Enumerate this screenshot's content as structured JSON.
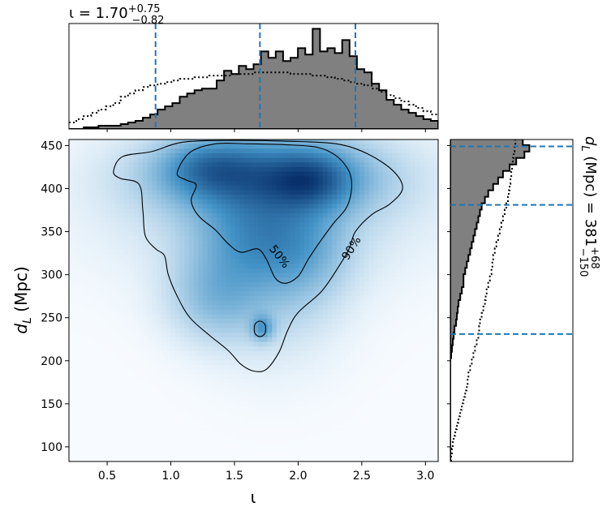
{
  "chart_data": {
    "type": "heatmap",
    "colors": {
      "density": "#08519c",
      "density_low": "#f7fbff",
      "histogram_fill": "#808080",
      "median_line": "#1f77b4",
      "outline": "#000000"
    },
    "joint": {
      "x_ticks": [
        0.5,
        1.0,
        1.5,
        2.0,
        2.5,
        3.0
      ],
      "x_tick_labels": [
        "0.5",
        "1.0",
        "1.5",
        "2.0",
        "2.5",
        "3.0"
      ],
      "y_ticks": [
        100,
        150,
        200,
        250,
        300,
        350,
        400,
        450
      ],
      "y_tick_labels": [
        "100",
        "150",
        "200",
        "250",
        "300",
        "350",
        "400",
        "450"
      ],
      "xlim": [
        0.2,
        3.1
      ],
      "ylim": [
        83,
        457
      ],
      "xlabel": "ι",
      "ylabel": "d",
      "ylabel_sub": "L",
      "ylabel_unit": " (Mpc)",
      "contour_labels": [
        "50%",
        "90%"
      ],
      "contour_50": [
        [
          1.05,
          418
        ],
        [
          1.15,
          442
        ],
        [
          1.35,
          452
        ],
        [
          1.6,
          452
        ],
        [
          1.9,
          451
        ],
        [
          2.15,
          448
        ],
        [
          2.3,
          438
        ],
        [
          2.4,
          420
        ],
        [
          2.42,
          400
        ],
        [
          2.38,
          378
        ],
        [
          2.28,
          360
        ],
        [
          2.18,
          340
        ],
        [
          2.08,
          318
        ],
        [
          2.0,
          298
        ],
        [
          1.9,
          290
        ],
        [
          1.82,
          296
        ],
        [
          1.75,
          318
        ],
        [
          1.68,
          330
        ],
        [
          1.55,
          326
        ],
        [
          1.45,
          336
        ],
        [
          1.35,
          352
        ],
        [
          1.22,
          368
        ],
        [
          1.16,
          386
        ],
        [
          1.2,
          404
        ],
        [
          1.12,
          410
        ]
      ],
      "contour_50_island": [
        [
          1.66,
          232
        ],
        [
          1.7,
          228
        ],
        [
          1.74,
          232
        ],
        [
          1.74,
          242
        ],
        [
          1.7,
          246
        ],
        [
          1.66,
          242
        ]
      ],
      "contour_90": [
        [
          0.55,
          420
        ],
        [
          0.62,
          437
        ],
        [
          0.85,
          443
        ],
        [
          1.1,
          454
        ],
        [
          1.5,
          456
        ],
        [
          1.9,
          455
        ],
        [
          2.3,
          452
        ],
        [
          2.55,
          440
        ],
        [
          2.75,
          420
        ],
        [
          2.82,
          400
        ],
        [
          2.72,
          382
        ],
        [
          2.58,
          370
        ],
        [
          2.45,
          350
        ],
        [
          2.4,
          330
        ],
        [
          2.3,
          305
        ],
        [
          2.18,
          280
        ],
        [
          2.0,
          256
        ],
        [
          1.92,
          236
        ],
        [
          1.85,
          210
        ],
        [
          1.75,
          190
        ],
        [
          1.65,
          188
        ],
        [
          1.55,
          196
        ],
        [
          1.45,
          212
        ],
        [
          1.3,
          230
        ],
        [
          1.15,
          250
        ],
        [
          1.05,
          275
        ],
        [
          0.98,
          300
        ],
        [
          0.95,
          322
        ],
        [
          0.88,
          330
        ],
        [
          0.8,
          345
        ],
        [
          0.78,
          375
        ],
        [
          0.75,
          405
        ],
        [
          0.6,
          412
        ]
      ],
      "blobs": [
        {
          "x": 1.75,
          "y": 415,
          "sx": 0.55,
          "sy": 30,
          "w": 0.75
        },
        {
          "x": 2.1,
          "y": 410,
          "sx": 0.22,
          "sy": 22,
          "w": 0.55
        },
        {
          "x": 1.3,
          "y": 425,
          "sx": 0.25,
          "sy": 22,
          "w": 0.45
        },
        {
          "x": 1.65,
          "y": 345,
          "sx": 0.3,
          "sy": 38,
          "w": 0.45
        },
        {
          "x": 1.35,
          "y": 275,
          "sx": 0.25,
          "sy": 35,
          "w": 0.35
        },
        {
          "x": 1.72,
          "y": 238,
          "sx": 0.06,
          "sy": 10,
          "w": 0.5
        },
        {
          "x": 2.05,
          "y": 330,
          "sx": 0.25,
          "sy": 40,
          "w": 0.3
        },
        {
          "x": 1.8,
          "y": 280,
          "sx": 0.35,
          "sy": 55,
          "w": 0.2
        },
        {
          "x": 1.75,
          "y": 390,
          "sx": 0.8,
          "sy": 60,
          "w": 0.25
        }
      ]
    },
    "top_marginal": {
      "title_symbol": "ι",
      "title_value": " = 1.70",
      "title_sup": "+0.75",
      "title_sub": "−0.82",
      "median": 1.7,
      "lower": 0.88,
      "upper": 2.45,
      "bins_start": 0.2,
      "bin_width": 0.058,
      "counts": [
        0,
        0,
        1,
        1,
        2,
        2,
        2,
        3,
        4,
        5,
        7,
        9,
        12,
        14,
        16,
        20,
        22,
        24,
        25,
        25,
        30,
        36,
        34,
        39,
        37,
        40,
        48,
        44,
        48,
        42,
        44,
        50,
        46,
        62,
        48,
        50,
        47,
        55,
        45,
        37,
        35,
        28,
        24,
        18,
        15,
        12,
        10,
        8,
        6,
        5
      ],
      "prior": [
        4,
        6,
        8,
        10,
        12,
        14,
        16,
        20,
        22,
        24,
        26,
        27,
        28,
        29,
        30,
        31,
        31,
        32,
        32,
        33,
        33,
        33,
        34,
        34,
        34,
        35,
        35,
        35,
        35,
        35,
        34,
        34,
        34,
        33,
        33,
        32,
        31,
        30,
        29,
        28,
        27,
        25,
        23,
        21,
        19,
        17,
        15,
        13,
        11,
        9
      ]
    },
    "right_marginal": {
      "title_symbol": "d",
      "title_sub_symbol": "L",
      "title_value": " (Mpc) = 381",
      "title_sup": "+68",
      "title_sub": "−150",
      "median": 381,
      "lower": 231,
      "upper": 449,
      "bins_start": 83,
      "bin_width": 7.5,
      "counts": [
        0,
        0,
        0,
        0,
        0,
        0,
        0,
        0,
        0,
        0,
        0,
        0,
        0,
        0,
        0,
        0,
        0.1,
        0.2,
        0.3,
        0.4,
        0.5,
        0.7,
        0.8,
        0.9,
        1.0,
        1.2,
        1.4,
        1.6,
        1.6,
        1.8,
        2.0,
        2.2,
        2.4,
        2.6,
        2.8,
        3.0,
        3.2,
        3.4,
        3.6,
        3.8,
        4.2,
        4.6,
        5.2,
        5.8,
        6.4,
        7.2,
        8.0,
        9.0,
        9.6,
        8.8
      ],
      "prior": [
        0.1,
        0.2,
        0.3,
        0.4,
        0.6,
        0.8,
        1.0,
        1.2,
        1.4,
        1.6,
        1.8,
        2.0,
        2.1,
        2.2,
        2.4,
        2.6,
        2.8,
        3.0,
        3.2,
        3.4,
        3.5,
        3.6,
        3.8,
        4.0,
        4.2,
        4.3,
        4.4,
        4.6,
        4.8,
        5.0,
        5.1,
        5.2,
        5.4,
        5.6,
        5.8,
        6.0,
        6.2,
        6.4,
        6.6,
        6.8,
        7.0,
        7.1,
        7.2,
        7.3,
        7.4,
        7.5,
        7.6,
        7.7,
        7.8,
        7.9
      ]
    }
  }
}
